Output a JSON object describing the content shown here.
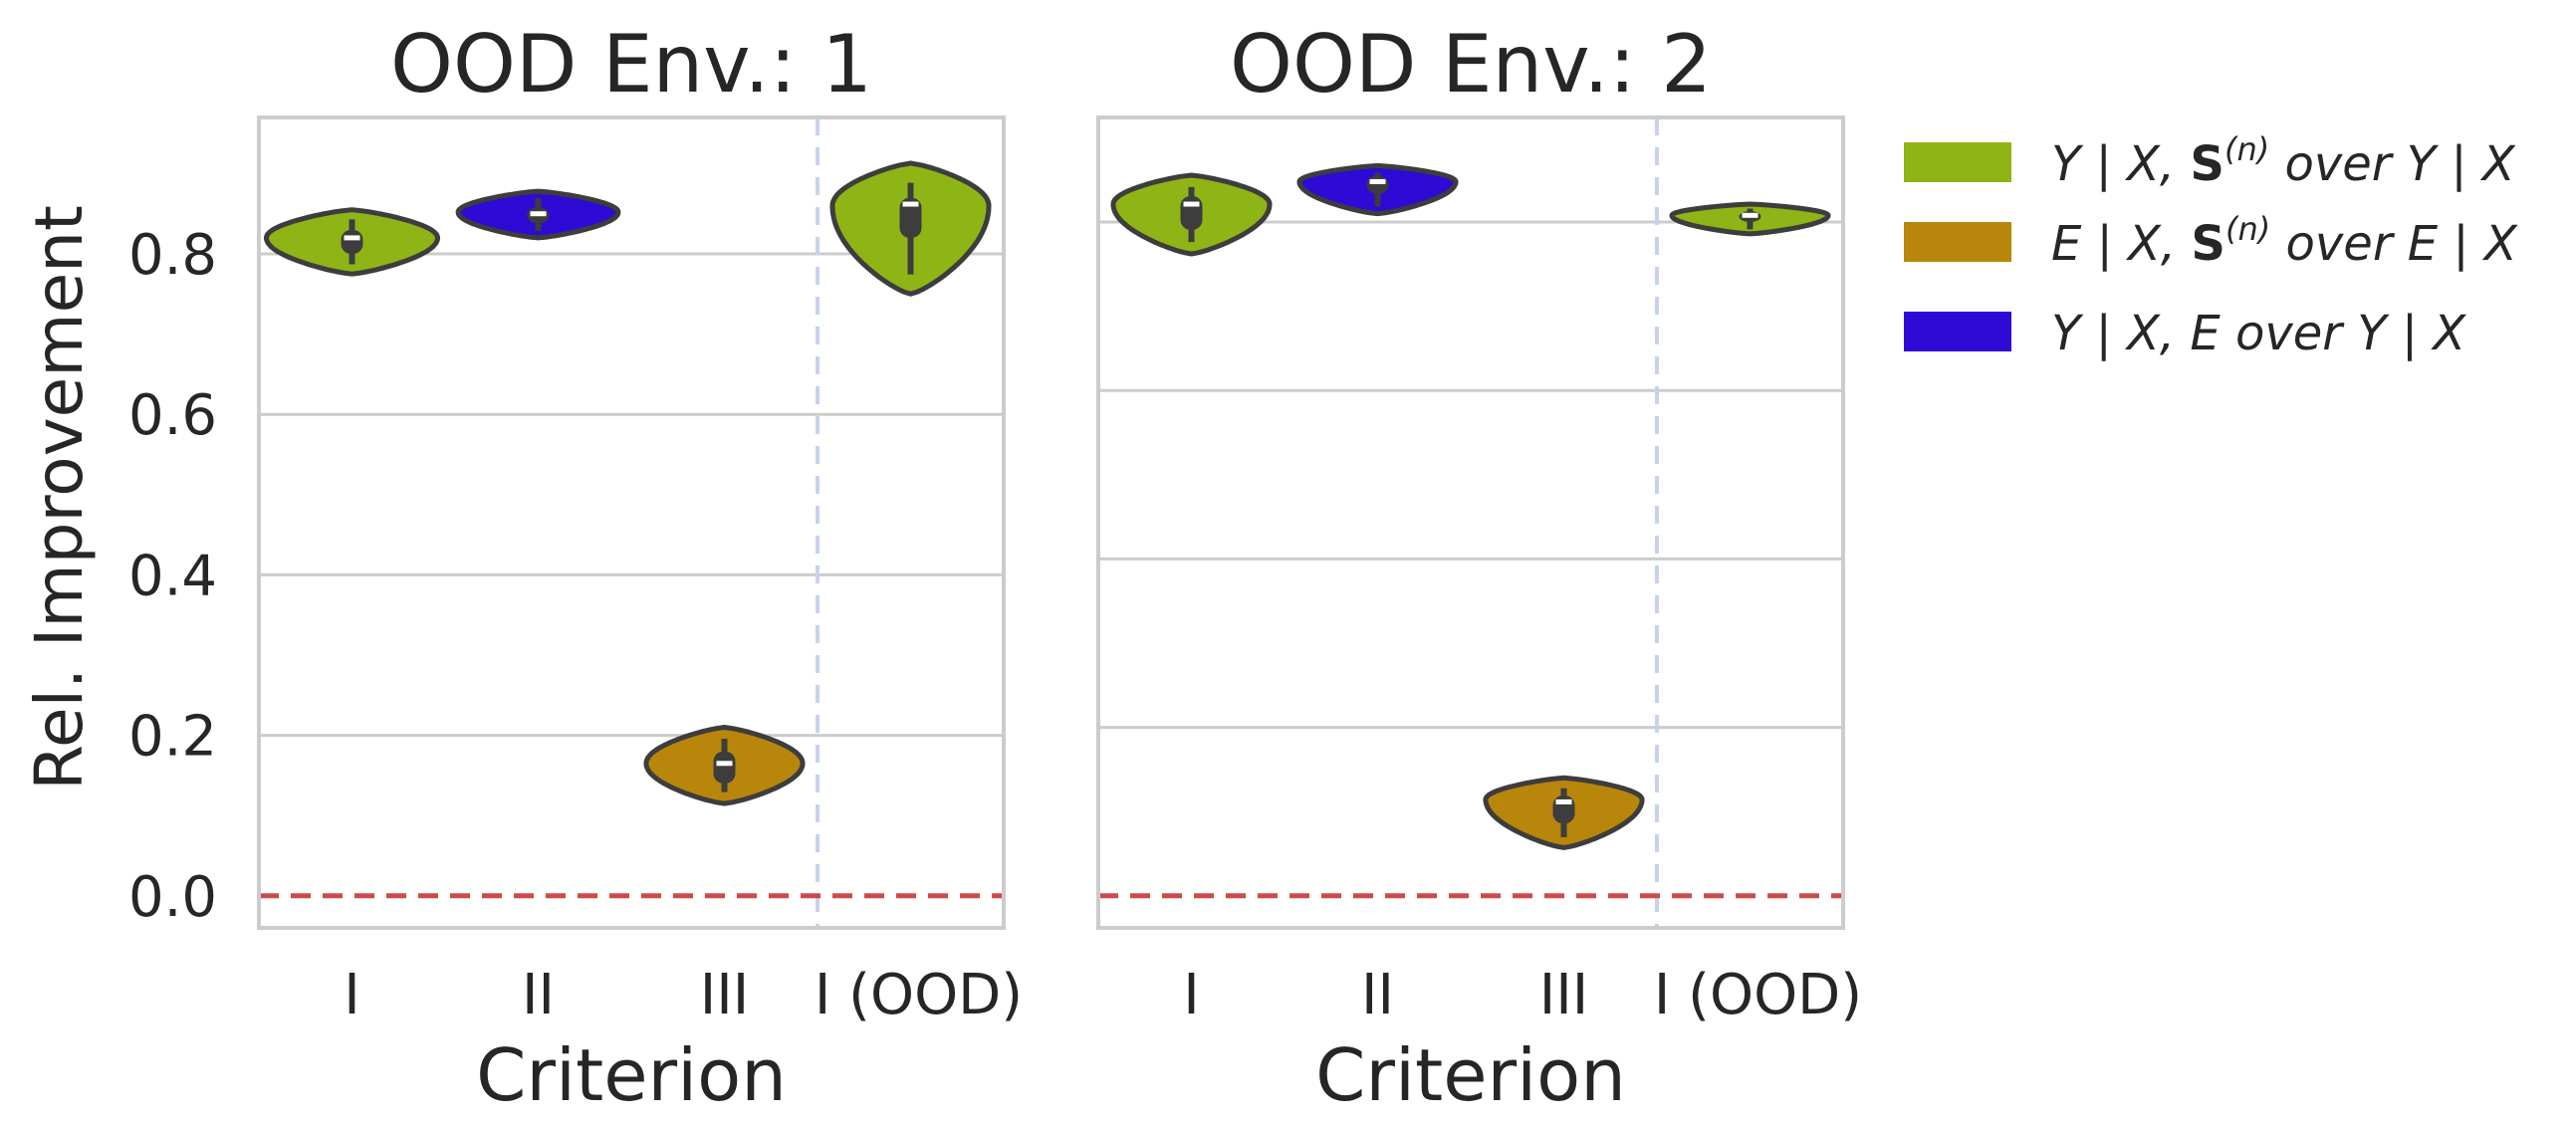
{
  "chart_data": {
    "type": "violin",
    "ylabel": "Rel. Improvement",
    "ylim": [
      -0.04,
      0.97
    ],
    "yticks": [
      0.0,
      0.2,
      0.4,
      0.6,
      0.8
    ],
    "ytick_labels": [
      "0.0",
      "0.2",
      "0.4",
      "0.6",
      "0.8"
    ],
    "baseline": 0.0,
    "legend": [
      {
        "series": "y_xs",
        "color": "#8fb416",
        "prefix": "Y | X, ",
        "bold": "S",
        "sup": "(n)",
        "suffix": "  over Y | X"
      },
      {
        "series": "e_xs",
        "color": "#b8860b",
        "prefix": "E | X, ",
        "bold": "S",
        "sup": "(n)",
        "suffix": " over E | X"
      },
      {
        "series": "y_xe",
        "color": "#2e0ad4",
        "prefix": "Y | X, E over Y | X",
        "bold": "",
        "sup": "",
        "suffix": ""
      }
    ],
    "panels": [
      {
        "title": "OOD Env.: 1",
        "xlabel": "Criterion",
        "categories": [
          "I",
          "II",
          "III",
          "I (OOD)"
        ],
        "violins": [
          {
            "category": "I",
            "series": "y_xs",
            "color": "#8fb416",
            "min": 0.775,
            "max": 0.855,
            "q1": 0.8,
            "median": 0.82,
            "q3": 0.83,
            "mode": 0.82,
            "max_halfwidth": 0.46
          },
          {
            "category": "II",
            "series": "y_xe",
            "color": "#2e0ad4",
            "min": 0.82,
            "max": 0.878,
            "q1": 0.838,
            "median": 0.85,
            "q3": 0.858,
            "mode": 0.852,
            "max_halfwidth": 0.43
          },
          {
            "category": "III",
            "series": "e_xs",
            "color": "#b8860b",
            "min": 0.115,
            "max": 0.21,
            "q1": 0.14,
            "median": 0.165,
            "q3": 0.18,
            "mode": 0.165,
            "max_halfwidth": 0.42
          },
          {
            "category": "I (OOD)",
            "series": "y_xs",
            "color": "#8fb416",
            "min": 0.75,
            "max": 0.913,
            "q1": 0.82,
            "median": 0.862,
            "q3": 0.87,
            "mode": 0.86,
            "max_halfwidth": 0.42
          }
        ]
      },
      {
        "title": "OOD Env.: 2",
        "xlabel": "Criterion",
        "categories": [
          "I",
          "II",
          "III",
          "I (OOD)"
        ],
        "violins": [
          {
            "category": "I",
            "series": "y_xs",
            "color": "#8fb416",
            "min": 0.8,
            "max": 0.898,
            "q1": 0.83,
            "median": 0.862,
            "q3": 0.872,
            "mode": 0.862,
            "max_halfwidth": 0.42
          },
          {
            "category": "II",
            "series": "y_xe",
            "color": "#2e0ad4",
            "min": 0.85,
            "max": 0.91,
            "q1": 0.875,
            "median": 0.89,
            "q3": 0.897,
            "mode": 0.89,
            "max_halfwidth": 0.42
          },
          {
            "category": "III",
            "series": "e_xs",
            "color": "#b8860b",
            "min": 0.06,
            "max": 0.147,
            "q1": 0.09,
            "median": 0.117,
            "q3": 0.125,
            "mode": 0.12,
            "max_halfwidth": 0.42
          },
          {
            "category": "I (OOD)",
            "series": "y_xs",
            "color": "#8fb416",
            "min": 0.825,
            "max": 0.862,
            "q1": 0.84,
            "median": 0.848,
            "q3": 0.853,
            "mode": 0.848,
            "max_halfwidth": 0.42
          }
        ]
      }
    ]
  }
}
